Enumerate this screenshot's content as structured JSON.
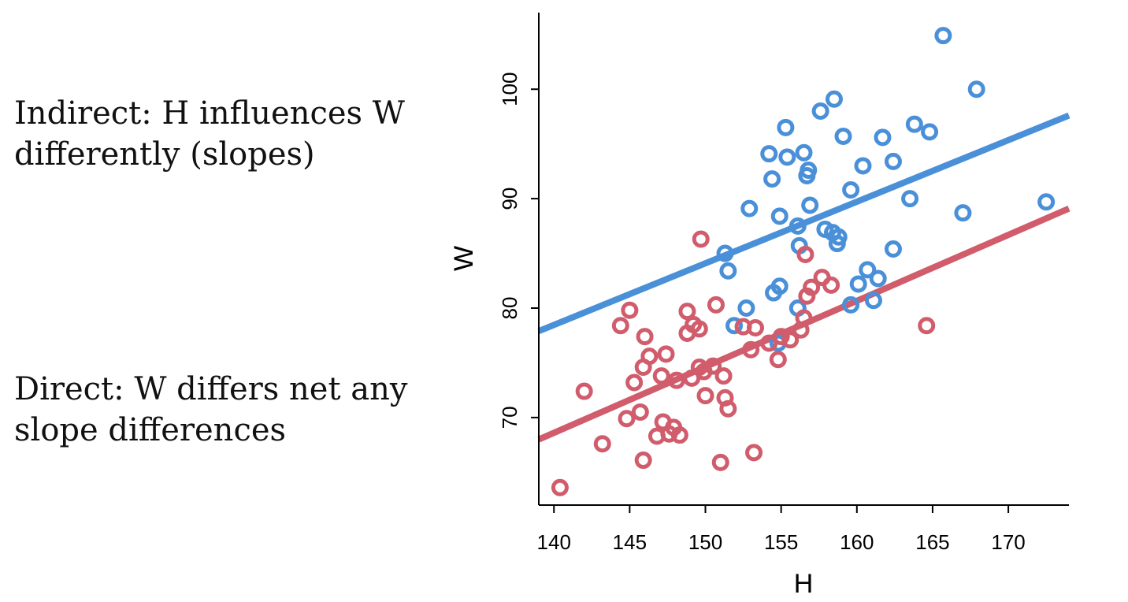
{
  "annotations": {
    "indirect": "Indirect: H influences W\ndifferently (slopes)",
    "direct": "Direct: W differs net any\nslope differences"
  },
  "chart_data": {
    "type": "scatter",
    "xlabel": "H",
    "ylabel": "W",
    "xlim": [
      139,
      174
    ],
    "ylim": [
      62,
      107
    ],
    "xticks": [
      140,
      145,
      150,
      155,
      160,
      165,
      170
    ],
    "yticks": [
      70,
      80,
      90,
      100
    ],
    "grid": false,
    "series": [
      {
        "color": "#4a90d9",
        "points": [
          [
            165.7,
            104.9
          ],
          [
            167.9,
            100.0
          ],
          [
            158.5,
            99.1
          ],
          [
            157.6,
            98.0
          ],
          [
            155.3,
            96.5
          ],
          [
            163.8,
            96.8
          ],
          [
            164.8,
            96.1
          ],
          [
            159.1,
            95.7
          ],
          [
            161.7,
            95.6
          ],
          [
            154.2,
            94.1
          ],
          [
            155.4,
            93.8
          ],
          [
            156.5,
            94.2
          ],
          [
            162.4,
            93.4
          ],
          [
            160.4,
            93.0
          ],
          [
            156.8,
            92.6
          ],
          [
            156.7,
            92.1
          ],
          [
            154.4,
            91.8
          ],
          [
            159.6,
            90.8
          ],
          [
            163.5,
            90.0
          ],
          [
            152.9,
            89.1
          ],
          [
            156.9,
            89.4
          ],
          [
            154.9,
            88.4
          ],
          [
            167.0,
            88.7
          ],
          [
            172.5,
            89.7
          ],
          [
            156.1,
            87.5
          ],
          [
            157.9,
            87.2
          ],
          [
            158.4,
            86.9
          ],
          [
            158.8,
            86.5
          ],
          [
            158.7,
            85.9
          ],
          [
            156.2,
            85.7
          ],
          [
            162.4,
            85.4
          ],
          [
            151.3,
            85.0
          ],
          [
            151.5,
            83.4
          ],
          [
            160.7,
            83.5
          ],
          [
            161.4,
            82.7
          ],
          [
            160.1,
            82.2
          ],
          [
            154.9,
            82.0
          ],
          [
            154.5,
            81.4
          ],
          [
            161.1,
            80.7
          ],
          [
            159.6,
            80.3
          ],
          [
            156.1,
            80.0
          ],
          [
            152.7,
            80.0
          ],
          [
            151.9,
            78.4
          ],
          [
            154.8,
            76.8
          ]
        ]
      },
      {
        "color": "#d05c6c",
        "points": [
          [
            149.7,
            86.3
          ],
          [
            156.6,
            84.9
          ],
          [
            157.7,
            82.8
          ],
          [
            158.3,
            82.1
          ],
          [
            157.0,
            81.9
          ],
          [
            156.7,
            81.1
          ],
          [
            145.0,
            79.8
          ],
          [
            148.8,
            79.7
          ],
          [
            150.7,
            80.3
          ],
          [
            156.5,
            79.1
          ],
          [
            144.4,
            78.4
          ],
          [
            149.2,
            78.5
          ],
          [
            149.6,
            78.1
          ],
          [
            152.5,
            78.3
          ],
          [
            153.3,
            78.2
          ],
          [
            164.6,
            78.4
          ],
          [
            146.0,
            77.4
          ],
          [
            148.8,
            77.7
          ],
          [
            156.3,
            78.0
          ],
          [
            155.0,
            77.4
          ],
          [
            155.6,
            77.1
          ],
          [
            154.2,
            76.8
          ],
          [
            153.0,
            76.2
          ],
          [
            146.3,
            75.6
          ],
          [
            147.4,
            75.8
          ],
          [
            145.9,
            74.6
          ],
          [
            149.6,
            74.6
          ],
          [
            150.5,
            74.7
          ],
          [
            149.9,
            74.2
          ],
          [
            154.8,
            75.3
          ],
          [
            147.1,
            73.8
          ],
          [
            149.1,
            73.6
          ],
          [
            151.2,
            73.8
          ],
          [
            145.3,
            73.2
          ],
          [
            148.1,
            73.4
          ],
          [
            142.0,
            72.4
          ],
          [
            150.0,
            72.0
          ],
          [
            151.3,
            71.8
          ],
          [
            151.5,
            70.8
          ],
          [
            145.7,
            70.5
          ],
          [
            144.8,
            69.9
          ],
          [
            147.2,
            69.6
          ],
          [
            147.9,
            69.1
          ],
          [
            147.6,
            68.5
          ],
          [
            146.8,
            68.3
          ],
          [
            148.3,
            68.4
          ],
          [
            143.2,
            67.6
          ],
          [
            153.2,
            66.8
          ],
          [
            145.9,
            66.1
          ],
          [
            151.0,
            65.9
          ],
          [
            140.4,
            63.6
          ]
        ]
      }
    ],
    "fit_lines": [
      {
        "color": "#4a90d9",
        "x": [
          139,
          174
        ],
        "y": [
          77.9,
          97.6
        ]
      },
      {
        "color": "#d05c6c",
        "x": [
          139,
          174
        ],
        "y": [
          68.0,
          89.1
        ]
      }
    ]
  }
}
